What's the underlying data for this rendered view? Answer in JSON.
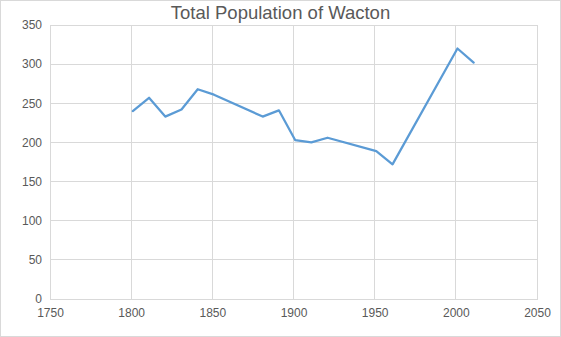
{
  "chart_data": {
    "type": "line",
    "title": "Total Population of Wacton",
    "x": [
      1801,
      1811,
      1821,
      1831,
      1841,
      1851,
      1881,
      1891,
      1901,
      1911,
      1921,
      1951,
      1961,
      2001,
      2011
    ],
    "values": [
      240,
      257,
      233,
      242,
      268,
      261,
      233,
      241,
      203,
      200,
      206,
      189,
      172,
      320,
      302
    ],
    "color": "#5b9bd5",
    "xlim": [
      1750,
      2050
    ],
    "xticks": [
      1750,
      1800,
      1850,
      1900,
      1950,
      2000,
      2050
    ],
    "ylim": [
      0,
      350
    ],
    "yticks": [
      0,
      50,
      100,
      150,
      200,
      250,
      300,
      350
    ],
    "grid": true
  }
}
